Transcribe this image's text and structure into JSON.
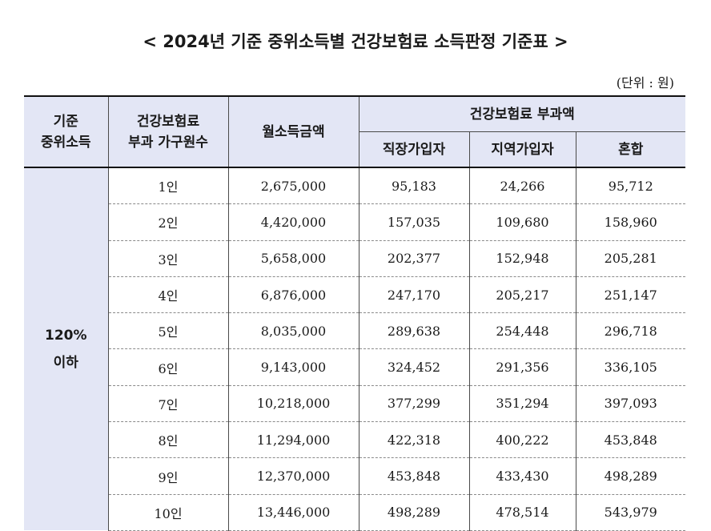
{
  "title": "< 2024년 기준 중위소득별 건강보험료 소득판정 기준표 >",
  "unit": "(단위 : 원)",
  "headers": {
    "median_income_line1": "기준",
    "median_income_line2": "중위소득",
    "household_line1": "건강보험료",
    "household_line2": "부과 가구원수",
    "monthly_income": "월소득금액",
    "premium_group": "건강보험료 부과액",
    "employee": "직장가입자",
    "regional": "지역가입자",
    "mixed": "혼합"
  },
  "group": {
    "line1": "120%",
    "line2": "이하"
  },
  "rows": [
    {
      "members": "1인",
      "income": "2,675,000",
      "employee": "95,183",
      "regional": "24,266",
      "mixed": "95,712"
    },
    {
      "members": "2인",
      "income": "4,420,000",
      "employee": "157,035",
      "regional": "109,680",
      "mixed": "158,960"
    },
    {
      "members": "3인",
      "income": "5,658,000",
      "employee": "202,377",
      "regional": "152,948",
      "mixed": "205,281"
    },
    {
      "members": "4인",
      "income": "6,876,000",
      "employee": "247,170",
      "regional": "205,217",
      "mixed": "251,147"
    },
    {
      "members": "5인",
      "income": "8,035,000",
      "employee": "289,638",
      "regional": "254,448",
      "mixed": "296,718"
    },
    {
      "members": "6인",
      "income": "9,143,000",
      "employee": "324,452",
      "regional": "291,356",
      "mixed": "336,105"
    },
    {
      "members": "7인",
      "income": "10,218,000",
      "employee": "377,299",
      "regional": "351,294",
      "mixed": "397,093"
    },
    {
      "members": "8인",
      "income": "11,294,000",
      "employee": "422,318",
      "regional": "400,222",
      "mixed": "453,848"
    },
    {
      "members": "9인",
      "income": "12,370,000",
      "employee": "453,848",
      "regional": "433,430",
      "mixed": "498,289"
    },
    {
      "members": "10인",
      "income": "13,446,000",
      "employee": "498,289",
      "regional": "478,514",
      "mixed": "543,979"
    }
  ]
}
